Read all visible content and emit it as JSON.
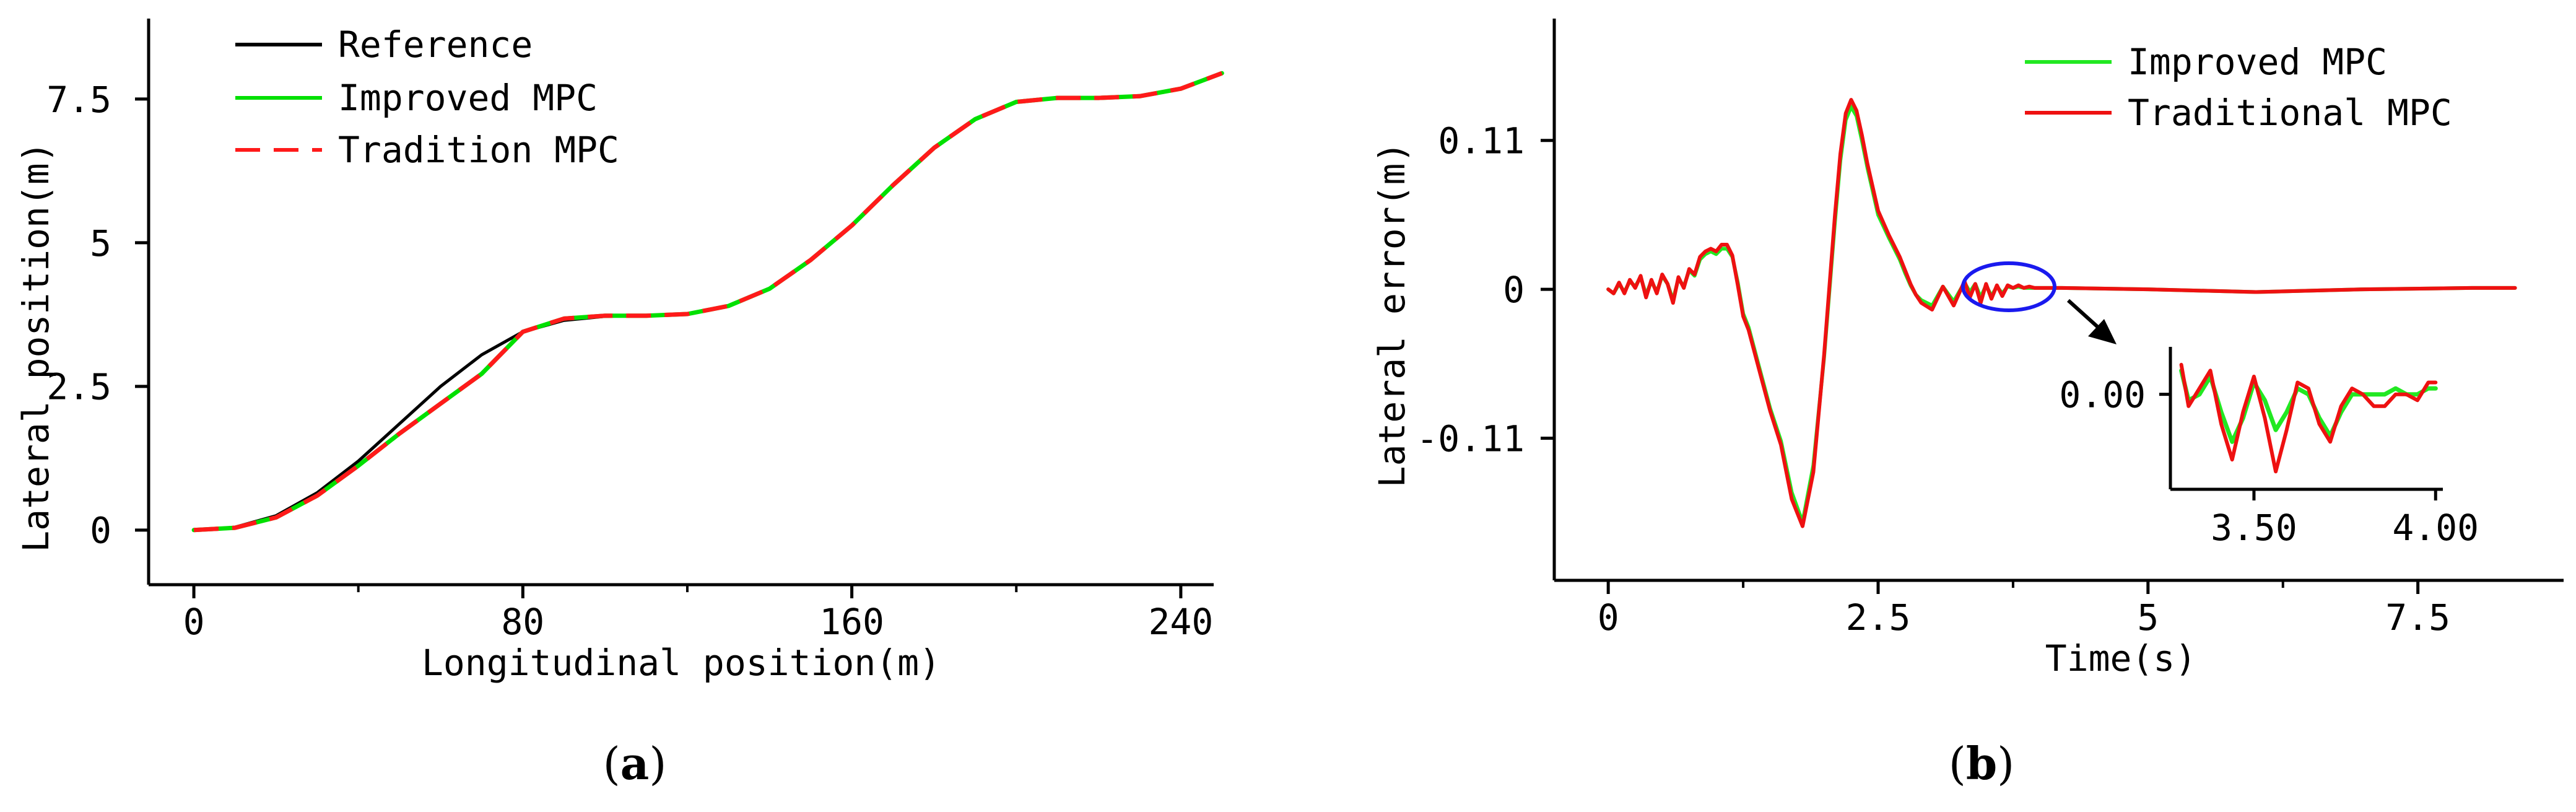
{
  "chart_data": [
    {
      "type": "line",
      "panel_label": "a",
      "xlabel": "Longitudinal position(m)",
      "ylabel": "Lateral position(m)",
      "xlim": [
        -11,
        248
      ],
      "ylim": [
        -0.95,
        8.9
      ],
      "xticks": [
        0,
        80,
        160,
        240
      ],
      "xtick_labels": [
        "0",
        "80",
        "160",
        "240"
      ],
      "yticks": [
        0,
        2.5,
        5,
        7.5
      ],
      "ytick_labels": [
        "0",
        "2.5",
        "5",
        "7.5"
      ],
      "grid": false,
      "legend_position": "top-left",
      "series": [
        {
          "name": "Reference",
          "color": "#000000",
          "dash": "solid",
          "x": [
            0,
            10,
            20,
            30,
            40,
            50,
            60,
            70,
            80,
            90,
            100,
            110,
            120,
            130,
            140,
            150,
            160,
            170,
            180,
            190,
            200,
            210,
            220,
            230,
            240,
            250
          ],
          "y": [
            0,
            0.05,
            0.25,
            0.65,
            1.2,
            1.85,
            2.5,
            3.05,
            3.45,
            3.65,
            3.72,
            3.73,
            3.76,
            3.9,
            4.2,
            4.7,
            5.3,
            6.0,
            6.65,
            7.15,
            7.45,
            7.52,
            7.52,
            7.55,
            7.68,
            7.95
          ]
        },
        {
          "name": "Improved MPC",
          "color": "#00e000",
          "dash": "solid",
          "x": [
            0,
            10,
            20,
            30,
            40,
            50,
            60,
            70,
            80,
            90,
            100,
            110,
            120,
            130,
            140,
            150,
            160,
            170,
            180,
            190,
            200,
            210,
            220,
            230,
            240,
            250
          ],
          "y": [
            0,
            0.04,
            0.22,
            0.6,
            1.12,
            1.68,
            2.2,
            2.72,
            3.45,
            3.68,
            3.73,
            3.73,
            3.76,
            3.9,
            4.2,
            4.7,
            5.3,
            6.0,
            6.65,
            7.15,
            7.45,
            7.52,
            7.52,
            7.55,
            7.68,
            7.95
          ]
        },
        {
          "name": "Tradition MPC",
          "color": "#ff1a1a",
          "dash": "dashed",
          "x": [
            0,
            10,
            20,
            30,
            40,
            50,
            60,
            70,
            80,
            90,
            100,
            110,
            120,
            130,
            140,
            150,
            160,
            170,
            180,
            190,
            200,
            210,
            220,
            230,
            240,
            250
          ],
          "y": [
            0,
            0.04,
            0.22,
            0.6,
            1.12,
            1.68,
            2.2,
            2.72,
            3.45,
            3.68,
            3.73,
            3.73,
            3.76,
            3.9,
            4.2,
            4.7,
            5.3,
            6.0,
            6.65,
            7.15,
            7.45,
            7.52,
            7.52,
            7.55,
            7.68,
            7.95
          ]
        }
      ]
    },
    {
      "type": "line",
      "panel_label": "b",
      "xlabel": "Time(s)",
      "ylabel": "Lateral error(m)",
      "xlim": [
        -0.5,
        8.85
      ],
      "ylim": [
        -0.215,
        0.2
      ],
      "xticks": [
        0,
        2.5,
        5,
        7.5
      ],
      "xtick_labels": [
        "0",
        "2.5",
        "5",
        "7.5"
      ],
      "yticks": [
        -0.11,
        0,
        0.11
      ],
      "ytick_labels": [
        "-0.11",
        "0",
        "0.11"
      ],
      "grid": false,
      "legend_position": "top-right",
      "series": [
        {
          "name": "Improved MPC",
          "color": "#22e822",
          "x": [
            0,
            0.05,
            0.1,
            0.15,
            0.2,
            0.25,
            0.3,
            0.35,
            0.4,
            0.45,
            0.5,
            0.55,
            0.6,
            0.65,
            0.7,
            0.75,
            0.8,
            0.85,
            0.9,
            0.95,
            1.0,
            1.05,
            1.1,
            1.15,
            1.2,
            1.25,
            1.3,
            1.4,
            1.5,
            1.6,
            1.7,
            1.8,
            1.9,
            2.0,
            2.1,
            2.15,
            2.2,
            2.25,
            2.3,
            2.35,
            2.4,
            2.5,
            2.6,
            2.7,
            2.75,
            2.8,
            2.85,
            2.9,
            3.0,
            3.1,
            3.2,
            3.3,
            3.35,
            3.4,
            3.45,
            3.5,
            3.55,
            3.6,
            3.65,
            3.7,
            3.75,
            3.8,
            3.85,
            3.9,
            3.95,
            4.0,
            4.2,
            5.0,
            6.0,
            7.0,
            8.0,
            8.4
          ],
          "y": [
            0.0,
            -0.003,
            0.004,
            -0.002,
            0.006,
            0.002,
            0.009,
            -0.004,
            0.006,
            -0.002,
            0.01,
            0.004,
            -0.008,
            0.008,
            0.002,
            0.014,
            0.01,
            0.022,
            0.026,
            0.028,
            0.026,
            0.03,
            0.03,
            0.024,
            0.005,
            -0.018,
            -0.028,
            -0.058,
            -0.088,
            -0.112,
            -0.15,
            -0.172,
            -0.13,
            -0.05,
            0.05,
            0.095,
            0.125,
            0.135,
            0.128,
            0.11,
            0.09,
            0.055,
            0.038,
            0.022,
            0.012,
            0.003,
            -0.004,
            -0.008,
            -0.012,
            0.002,
            -0.009,
            0.005,
            -0.002,
            0.004,
            -0.006,
            0.003,
            -0.005,
            0.002,
            -0.003,
            0.002,
            0.001,
            0.002,
            0.001,
            0.001,
            0.001,
            0.001,
            0.001,
            0.0,
            -0.002,
            0.0,
            0.001,
            0.001
          ]
        },
        {
          "name": "Traditional MPC",
          "color": "#ee1111",
          "x": [
            0,
            0.05,
            0.1,
            0.15,
            0.2,
            0.25,
            0.3,
            0.35,
            0.4,
            0.45,
            0.5,
            0.55,
            0.6,
            0.65,
            0.7,
            0.75,
            0.8,
            0.85,
            0.9,
            0.95,
            1.0,
            1.05,
            1.1,
            1.15,
            1.2,
            1.25,
            1.3,
            1.4,
            1.5,
            1.6,
            1.7,
            1.8,
            1.9,
            2.0,
            2.1,
            2.15,
            2.2,
            2.25,
            2.3,
            2.35,
            2.4,
            2.5,
            2.6,
            2.7,
            2.75,
            2.8,
            2.85,
            2.9,
            3.0,
            3.1,
            3.2,
            3.3,
            3.35,
            3.4,
            3.45,
            3.5,
            3.55,
            3.6,
            3.65,
            3.7,
            3.75,
            3.8,
            3.85,
            3.9,
            3.95,
            4.0,
            4.2,
            5.0,
            6.0,
            7.0,
            8.0,
            8.4
          ],
          "y": [
            0.0,
            -0.003,
            0.005,
            -0.003,
            0.007,
            0.001,
            0.01,
            -0.006,
            0.007,
            -0.003,
            0.011,
            0.004,
            -0.01,
            0.009,
            0.001,
            0.015,
            0.011,
            0.024,
            0.028,
            0.03,
            0.028,
            0.033,
            0.033,
            0.025,
            0.003,
            -0.02,
            -0.03,
            -0.06,
            -0.09,
            -0.115,
            -0.155,
            -0.175,
            -0.135,
            -0.048,
            0.055,
            0.1,
            0.13,
            0.14,
            0.132,
            0.114,
            0.093,
            0.058,
            0.04,
            0.024,
            0.014,
            0.004,
            -0.004,
            -0.01,
            -0.015,
            0.002,
            -0.012,
            0.006,
            -0.006,
            0.004,
            -0.01,
            0.004,
            -0.007,
            0.003,
            -0.005,
            0.003,
            0.001,
            0.003,
            0.001,
            0.002,
            0.001,
            0.001,
            0.001,
            0.0,
            -0.002,
            0.0,
            0.001,
            0.001
          ]
        }
      ],
      "inset": {
        "xlim": [
          3.27,
          4.02
        ],
        "ylim": [
          -0.016,
          0.008
        ],
        "xticks": [
          3.5,
          4.0
        ],
        "xtick_labels": [
          "3.50",
          "4.00"
        ],
        "yticks": [
          0
        ],
        "ytick_labels": [
          "0.00"
        ],
        "series": [
          {
            "name": "Improved MPC",
            "color": "#22e822",
            "x": [
              3.3,
              3.32,
              3.35,
              3.38,
              3.41,
              3.44,
              3.47,
              3.5,
              3.53,
              3.56,
              3.59,
              3.62,
              3.65,
              3.68,
              3.71,
              3.74,
              3.77,
              3.8,
              3.83,
              3.86,
              3.89,
              3.92,
              3.95,
              3.98,
              4.0
            ],
            "y": [
              0.004,
              -0.001,
              0.0,
              0.003,
              -0.003,
              -0.008,
              -0.004,
              0.002,
              -0.001,
              -0.006,
              -0.003,
              0.001,
              0.0,
              -0.004,
              -0.007,
              -0.003,
              0.0,
              0.0,
              0.0,
              0.0,
              0.001,
              0.0,
              0.0,
              0.001,
              0.001
            ]
          },
          {
            "name": "Traditional MPC",
            "color": "#ee1111",
            "x": [
              3.3,
              3.32,
              3.35,
              3.38,
              3.41,
              3.44,
              3.47,
              3.5,
              3.53,
              3.56,
              3.59,
              3.62,
              3.65,
              3.68,
              3.71,
              3.74,
              3.77,
              3.8,
              3.83,
              3.86,
              3.89,
              3.92,
              3.95,
              3.98,
              4.0
            ],
            "y": [
              0.005,
              -0.002,
              0.001,
              0.004,
              -0.005,
              -0.011,
              -0.003,
              0.003,
              -0.004,
              -0.013,
              -0.006,
              0.002,
              0.001,
              -0.005,
              -0.008,
              -0.002,
              0.001,
              0.0,
              -0.002,
              -0.002,
              0.0,
              0.0,
              -0.001,
              0.002,
              0.002
            ]
          }
        ]
      }
    }
  ],
  "colors": {
    "zoom_ellipse": "#1a1aee",
    "zoom_arrow": "#000000"
  }
}
